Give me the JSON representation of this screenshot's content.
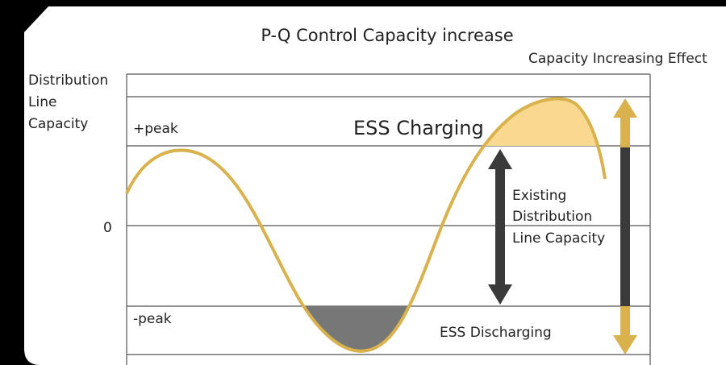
{
  "title": "P-Q Control Capacity increase",
  "effect_label": "Capacity Increasing Effect",
  "y_label": [
    "Distribution",
    "Line",
    "Capacity"
  ],
  "levels": {
    "plus_peak": "+peak",
    "zero": "0",
    "minus_peak": "-peak"
  },
  "charging_label": "ESS Charging",
  "discharging_label": "ESS Discharging",
  "existing_label": [
    "Existing",
    "Distribution",
    "Line Capacity"
  ]
}
